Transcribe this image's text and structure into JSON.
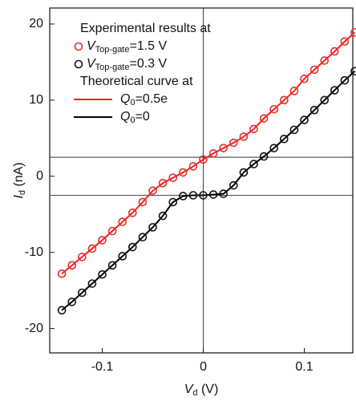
{
  "chart_data": {
    "type": "scatter",
    "x_label": {
      "symbol": "V",
      "subscript": "d",
      "unit": " (V)"
    },
    "y_label": {
      "symbol": "I",
      "subscript": "d",
      "unit": " (nA)"
    },
    "xlim": [
      -0.152,
      0.148
    ],
    "ylim": [
      -23.2,
      22.1
    ],
    "xticks": [
      -0.1,
      0,
      0.1
    ],
    "yticks": [
      -20,
      -10,
      0,
      10,
      20
    ],
    "hlines": [
      2.5,
      -2.5
    ],
    "vlines": [
      0
    ],
    "legend_titles": [
      "Experimental results at",
      "Theoretical curve at"
    ],
    "x": [
      -0.14,
      -0.13,
      -0.12,
      -0.11,
      -0.1,
      -0.09,
      -0.08,
      -0.07,
      -0.06,
      -0.05,
      -0.04,
      -0.03,
      -0.02,
      -0.01,
      0.0,
      0.01,
      0.02,
      0.03,
      0.04,
      0.05,
      0.06,
      0.07,
      0.08,
      0.09,
      0.1,
      0.11,
      0.12,
      0.13,
      0.14,
      0.15
    ],
    "series": [
      {
        "kind": "marker",
        "color": "#e0302a",
        "label": {
          "symbol": "V",
          "subscript": "Top-gate",
          "rest": "=1.5 V"
        },
        "values": [
          -12.8,
          -11.7,
          -10.6,
          -9.5,
          -8.4,
          -7.2,
          -6.0,
          -4.8,
          -3.4,
          -1.9,
          -0.9,
          -0.2,
          0.5,
          1.3,
          2.2,
          3.0,
          3.7,
          4.4,
          5.2,
          6.2,
          7.6,
          8.8,
          10.0,
          11.2,
          12.8,
          14.0,
          15.2,
          16.4,
          17.7,
          18.9
        ]
      },
      {
        "kind": "marker",
        "color": "#111111",
        "label": {
          "symbol": "V",
          "subscript": "Top-gate",
          "rest": "=0.3 V"
        },
        "values": [
          -17.6,
          -16.5,
          -15.3,
          -14.1,
          -12.9,
          -11.7,
          -10.5,
          -9.3,
          -8.0,
          -6.7,
          -5.2,
          -3.4,
          -2.6,
          -2.5,
          -2.5,
          -2.4,
          -2.3,
          -1.2,
          0.5,
          1.6,
          2.6,
          3.7,
          4.9,
          6.1,
          7.4,
          8.7,
          10.0,
          11.3,
          12.6,
          13.8
        ]
      },
      {
        "kind": "line",
        "color": "#ff1a1a",
        "label": {
          "symbol": "Q",
          "subscript": "0",
          "rest": "=0.5e"
        },
        "values": [
          -12.8,
          -11.7,
          -10.6,
          -9.5,
          -8.4,
          -7.2,
          -6.0,
          -4.8,
          -3.4,
          -1.9,
          -0.9,
          -0.2,
          0.5,
          1.3,
          2.2,
          3.0,
          3.7,
          4.4,
          5.2,
          6.2,
          7.6,
          8.8,
          10.0,
          11.2,
          12.8,
          14.0,
          15.2,
          16.4,
          17.7,
          18.9
        ]
      },
      {
        "kind": "line",
        "color": "#000000",
        "label": {
          "symbol": "Q",
          "subscript": "0",
          "rest": "=0"
        },
        "values": [
          -17.6,
          -16.5,
          -15.3,
          -14.1,
          -12.9,
          -11.7,
          -10.5,
          -9.3,
          -8.0,
          -6.7,
          -5.2,
          -3.4,
          -2.6,
          -2.5,
          -2.5,
          -2.4,
          -2.3,
          -1.2,
          0.5,
          1.6,
          2.6,
          3.7,
          4.9,
          6.1,
          7.4,
          8.7,
          10.0,
          11.3,
          12.6,
          13.8
        ]
      }
    ]
  }
}
